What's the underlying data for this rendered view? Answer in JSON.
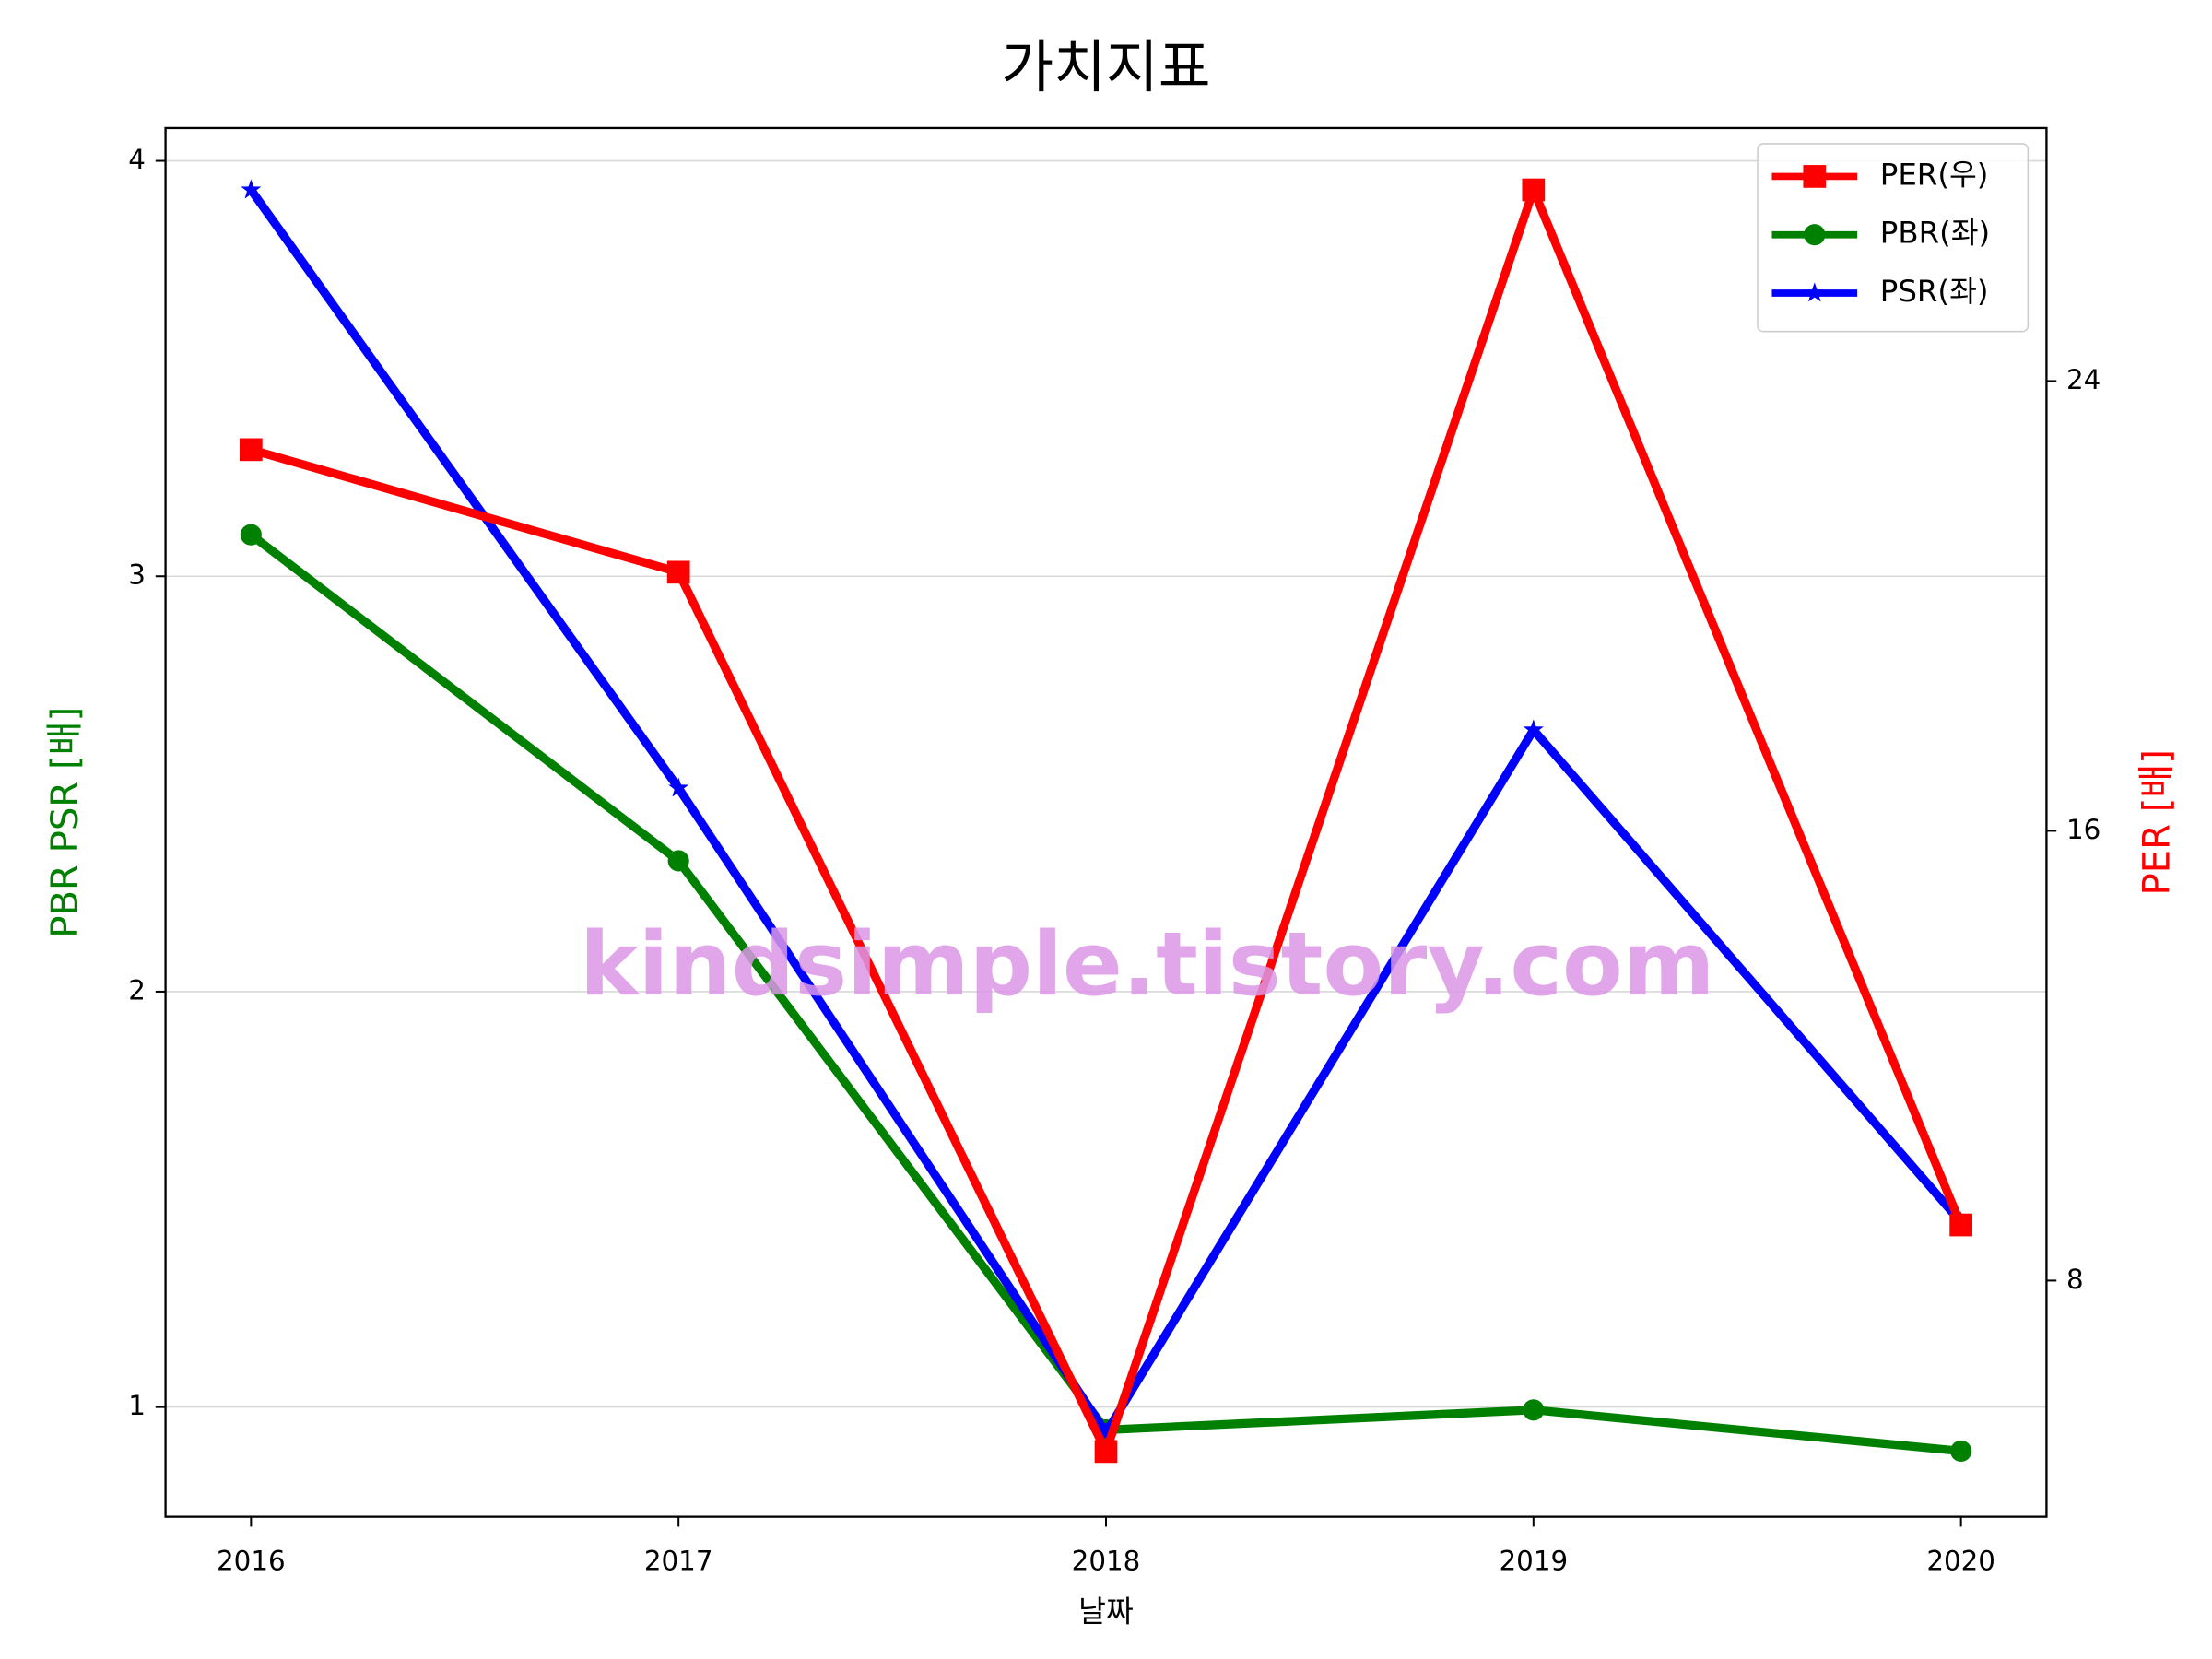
{
  "chart_data": {
    "type": "line",
    "title": "가치지표",
    "x_label": "날짜",
    "y_label": "PBR PSR [배]",
    "y2_label": "PER [배]",
    "y_label_color": "green",
    "y2_label_color": "red",
    "watermark": "kindsimple.tistory.com",
    "x": [
      2016,
      2017,
      2018,
      2019,
      2020
    ],
    "xlim": [
      2015.8,
      2020.2
    ],
    "xticks": [
      2016,
      2017,
      2018,
      2019,
      2020
    ],
    "ylim": [
      0.736,
      4.079
    ],
    "yticks": [
      1,
      2,
      3,
      4
    ],
    "y2lim": [
      3.8,
      28.5
    ],
    "y2ticks": [
      8,
      16,
      24
    ],
    "grid": true,
    "legend": "upper right",
    "series": [
      {
        "name": "PER(우)",
        "color": "#ff0000",
        "marker": "square",
        "axis": "y2",
        "values": [
          22.78,
          20.6,
          4.96,
          27.4,
          8.99
        ]
      },
      {
        "name": "PBR(좌)",
        "color": "#008000",
        "marker": "circle",
        "values": [
          3.1,
          2.315,
          0.945,
          0.993,
          0.894
        ]
      },
      {
        "name": "PSR(좌)",
        "color": "#0000ff",
        "marker": "star",
        "values": [
          3.93,
          2.49,
          0.938,
          2.63,
          1.445
        ]
      }
    ]
  }
}
